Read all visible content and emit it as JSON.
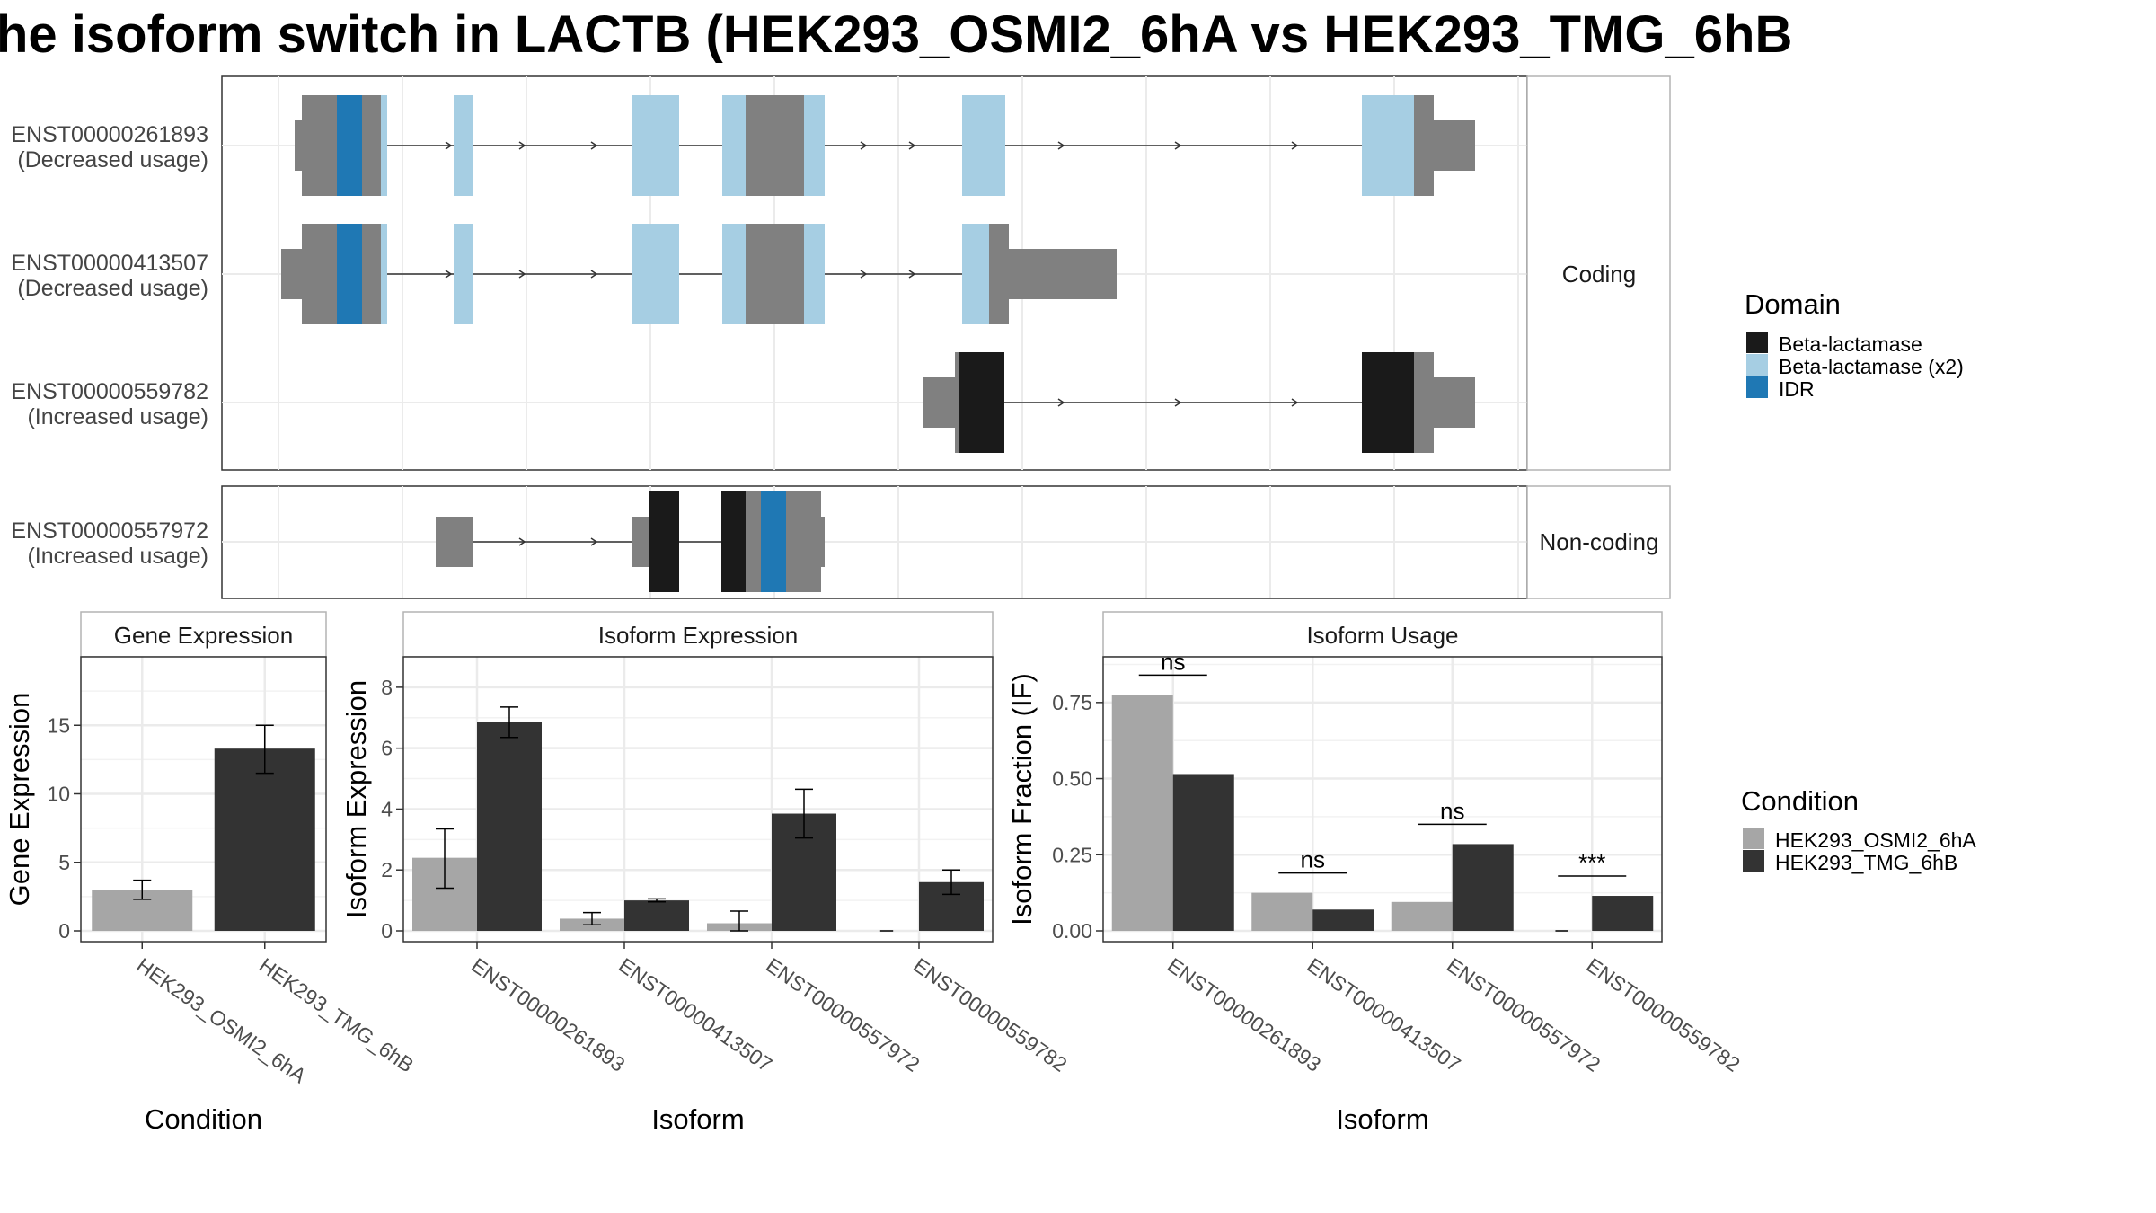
{
  "title": "he isoform switch in LACTB (HEK293_OSMI2_6hA vs HEK293_TMG_6hB",
  "colors": {
    "beta_lactamase": "#1a1a1a",
    "beta_lactamase_x2": "#a6cee3",
    "idr": "#1f78b4",
    "exon_non_domain": "#808080",
    "condition_a": "#a6a6a6",
    "condition_b": "#333333"
  },
  "legends": {
    "domain": {
      "title": "Domain",
      "items": [
        {
          "label": "Beta-lactamase",
          "color": "#1a1a1a"
        },
        {
          "label": "Beta-lactamase (x2)",
          "color": "#a6cee3"
        },
        {
          "label": "IDR",
          "color": "#1f78b4"
        }
      ]
    },
    "condition": {
      "title": "Condition",
      "items": [
        {
          "label": "HEK293_OSMI2_6hA",
          "color": "#a6a6a6"
        },
        {
          "label": "HEK293_TMG_6hB",
          "color": "#333333"
        }
      ]
    }
  },
  "transcript_panels": [
    {
      "strip": "Coding",
      "transcripts": [
        {
          "id": "ENST00000261893",
          "usage": "(Decreased usage)"
        },
        {
          "id": "ENST00000413507",
          "usage": "(Decreased usage)"
        },
        {
          "id": "ENST00000559782",
          "usage": "(Increased usage)"
        }
      ]
    },
    {
      "strip": "Non-coding",
      "transcripts": [
        {
          "id": "ENST00000557972",
          "usage": "(Increased usage)"
        }
      ]
    }
  ],
  "chart_data": [
    {
      "type": "bar",
      "title": "Gene Expression",
      "xlabel": "Condition",
      "ylabel": "Gene Expression",
      "categories": [
        "HEK293_OSMI2_6hA",
        "HEK293_TMG_6hB"
      ],
      "values": [
        3.0,
        13.3
      ],
      "error_bars": [
        [
          2.3,
          3.7
        ],
        [
          11.5,
          15.0
        ]
      ],
      "ylim": [
        0,
        20
      ],
      "yticks": [
        "0",
        "5",
        "10",
        "15"
      ],
      "grid": true
    },
    {
      "type": "bar",
      "title": "Isoform Expression",
      "xlabel": "Isoform",
      "ylabel": "Isoform Expression",
      "categories": [
        "ENST00000261893",
        "ENST00000413507",
        "ENST00000557972",
        "ENST00000559782"
      ],
      "series": [
        {
          "name": "HEK293_OSMI2_6hA",
          "values": [
            2.4,
            0.4,
            0.25,
            0.0
          ],
          "error_bars": [
            [
              1.4,
              3.35
            ],
            [
              0.2,
              0.6
            ],
            [
              0.0,
              0.65
            ],
            [
              0.0,
              0.0
            ]
          ]
        },
        {
          "name": "HEK293_TMG_6hB",
          "values": [
            6.85,
            1.0,
            3.85,
            1.6
          ],
          "error_bars": [
            [
              6.35,
              7.35
            ],
            [
              0.95,
              1.05
            ],
            [
              3.05,
              4.65
            ],
            [
              1.2,
              2.0
            ]
          ]
        }
      ],
      "ylim": [
        0,
        9
      ],
      "yticks": [
        "0",
        "2",
        "4",
        "6",
        "8"
      ],
      "grid": true
    },
    {
      "type": "bar",
      "title": "Isoform Usage",
      "xlabel": "Isoform",
      "ylabel": "Isoform Fraction (IF)",
      "categories": [
        "ENST00000261893",
        "ENST00000413507",
        "ENST00000557972",
        "ENST00000559782"
      ],
      "series": [
        {
          "name": "HEK293_OSMI2_6hA",
          "values": [
            0.775,
            0.125,
            0.095,
            0.0
          ]
        },
        {
          "name": "HEK293_TMG_6hB",
          "values": [
            0.515,
            0.07,
            0.285,
            0.115
          ]
        }
      ],
      "significance": [
        "ns",
        "ns",
        "ns",
        "***"
      ],
      "ylim": [
        0,
        0.9
      ],
      "yticks": [
        "0.00",
        "0.25",
        "0.50",
        "0.75"
      ],
      "grid": true
    }
  ]
}
